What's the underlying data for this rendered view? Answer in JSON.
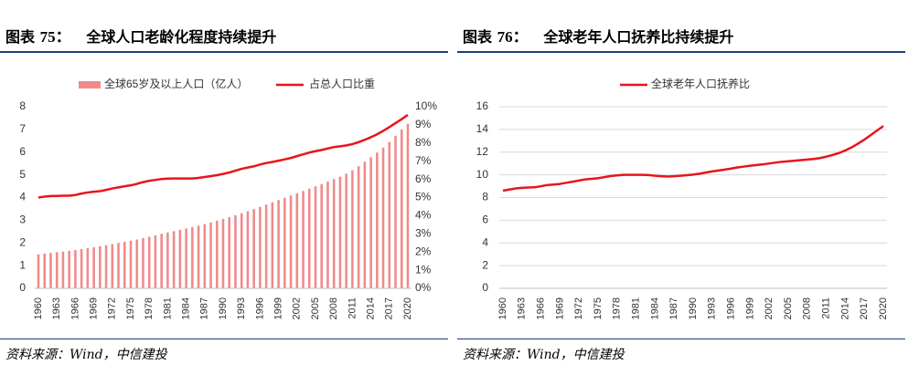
{
  "left": {
    "title_label": "图表",
    "title_number": "75：",
    "title_text": "全球人口老龄化程度持续提升",
    "source": "资料来源：Wind，中信建投"
  },
  "right": {
    "title_label": "图表",
    "title_number": "76：",
    "title_text": "全球老年人口抚养比持续提升",
    "source": "资料来源：Wind，中信建投"
  },
  "colors": {
    "bar": "#f08a8a",
    "line": "#e8141c",
    "grid": "#d9d9d9",
    "rule": "#1f3f7a"
  },
  "chart_data": [
    {
      "type": "bar",
      "title": "全球人口老龄化程度持续提升",
      "x": [
        1960,
        1961,
        1962,
        1963,
        1964,
        1965,
        1966,
        1967,
        1968,
        1969,
        1970,
        1971,
        1972,
        1973,
        1974,
        1975,
        1976,
        1977,
        1978,
        1979,
        1980,
        1981,
        1982,
        1983,
        1984,
        1985,
        1986,
        1987,
        1988,
        1989,
        1990,
        1991,
        1992,
        1993,
        1994,
        1995,
        1996,
        1997,
        1998,
        1999,
        2000,
        2001,
        2002,
        2003,
        2004,
        2005,
        2006,
        2007,
        2008,
        2009,
        2010,
        2011,
        2012,
        2013,
        2014,
        2015,
        2016,
        2017,
        2018,
        2019,
        2020
      ],
      "x_tick_labels": [
        "1960",
        "1963",
        "1966",
        "1969",
        "1972",
        "1975",
        "1978",
        "1981",
        "1984",
        "1987",
        "1990",
        "1993",
        "1996",
        "1999",
        "2002",
        "2005",
        "2008",
        "2011",
        "2014",
        "2017",
        "2020"
      ],
      "ylim": [
        0,
        8
      ],
      "y_ticks": [
        "0",
        "1",
        "2",
        "3",
        "4",
        "5",
        "6",
        "7",
        "8"
      ],
      "y2lim": [
        0,
        10
      ],
      "y2_ticks": [
        "0%",
        "1%",
        "2%",
        "3%",
        "4%",
        "5%",
        "6%",
        "7%",
        "8%",
        "9%",
        "10%"
      ],
      "series": [
        {
          "name": "全球65岁及以上人口（亿人）",
          "type": "bar",
          "axis": "left",
          "values": [
            1.5,
            1.53,
            1.56,
            1.59,
            1.62,
            1.65,
            1.69,
            1.73,
            1.77,
            1.81,
            1.85,
            1.9,
            1.95,
            2.0,
            2.05,
            2.1,
            2.15,
            2.21,
            2.27,
            2.33,
            2.4,
            2.46,
            2.52,
            2.58,
            2.64,
            2.7,
            2.76,
            2.83,
            2.9,
            2.98,
            3.06,
            3.14,
            3.22,
            3.31,
            3.4,
            3.49,
            3.59,
            3.69,
            3.79,
            3.89,
            3.99,
            4.09,
            4.19,
            4.29,
            4.39,
            4.49,
            4.59,
            4.7,
            4.81,
            4.92,
            5.05,
            5.2,
            5.38,
            5.58,
            5.78,
            5.98,
            6.2,
            6.45,
            6.72,
            7.0,
            7.25
          ]
        },
        {
          "name": "占总人口比重",
          "type": "line",
          "axis": "right",
          "values": [
            5.0,
            5.05,
            5.08,
            5.09,
            5.1,
            5.1,
            5.14,
            5.22,
            5.28,
            5.32,
            5.35,
            5.42,
            5.5,
            5.56,
            5.62,
            5.67,
            5.75,
            5.85,
            5.92,
            5.97,
            6.02,
            6.04,
            6.05,
            6.05,
            6.05,
            6.05,
            6.08,
            6.13,
            6.18,
            6.23,
            6.3,
            6.38,
            6.48,
            6.58,
            6.65,
            6.72,
            6.82,
            6.9,
            6.96,
            7.03,
            7.1,
            7.18,
            7.28,
            7.38,
            7.48,
            7.55,
            7.62,
            7.7,
            7.78,
            7.82,
            7.87,
            7.94,
            8.05,
            8.18,
            8.32,
            8.48,
            8.67,
            8.88,
            9.1,
            9.32,
            9.55
          ]
        }
      ]
    },
    {
      "type": "line",
      "title": "全球老年人口抚养比持续提升",
      "x": [
        1960,
        1961,
        1962,
        1963,
        1964,
        1965,
        1966,
        1967,
        1968,
        1969,
        1970,
        1971,
        1972,
        1973,
        1974,
        1975,
        1976,
        1977,
        1978,
        1979,
        1980,
        1981,
        1982,
        1983,
        1984,
        1985,
        1986,
        1987,
        1988,
        1989,
        1990,
        1991,
        1992,
        1993,
        1994,
        1995,
        1996,
        1997,
        1998,
        1999,
        2000,
        2001,
        2002,
        2003,
        2004,
        2005,
        2006,
        2007,
        2008,
        2009,
        2010,
        2011,
        2012,
        2013,
        2014,
        2015,
        2016,
        2017,
        2018,
        2019,
        2020
      ],
      "x_tick_labels": [
        "1960",
        "1963",
        "1966",
        "1969",
        "1972",
        "1975",
        "1978",
        "1981",
        "1984",
        "1987",
        "1990",
        "1993",
        "1996",
        "1999",
        "2002",
        "2005",
        "2008",
        "2011",
        "2014",
        "2017",
        "2020"
      ],
      "ylim": [
        0,
        16
      ],
      "y_ticks": [
        "0",
        "2",
        "4",
        "6",
        "8",
        "10",
        "12",
        "14",
        "16"
      ],
      "series": [
        {
          "name": "全球老年人口抚养比",
          "type": "line",
          "values": [
            8.6,
            8.7,
            8.8,
            8.85,
            8.88,
            8.9,
            9.0,
            9.1,
            9.15,
            9.2,
            9.3,
            9.4,
            9.5,
            9.6,
            9.65,
            9.7,
            9.8,
            9.9,
            9.95,
            10.0,
            10.0,
            10.0,
            10.0,
            9.98,
            9.92,
            9.88,
            9.85,
            9.88,
            9.92,
            9.97,
            10.02,
            10.1,
            10.2,
            10.3,
            10.38,
            10.46,
            10.55,
            10.65,
            10.73,
            10.8,
            10.86,
            10.92,
            11.0,
            11.08,
            11.15,
            11.2,
            11.25,
            11.3,
            11.35,
            11.4,
            11.48,
            11.6,
            11.75,
            11.92,
            12.15,
            12.42,
            12.75,
            13.1,
            13.5,
            13.9,
            14.3
          ]
        }
      ]
    }
  ]
}
